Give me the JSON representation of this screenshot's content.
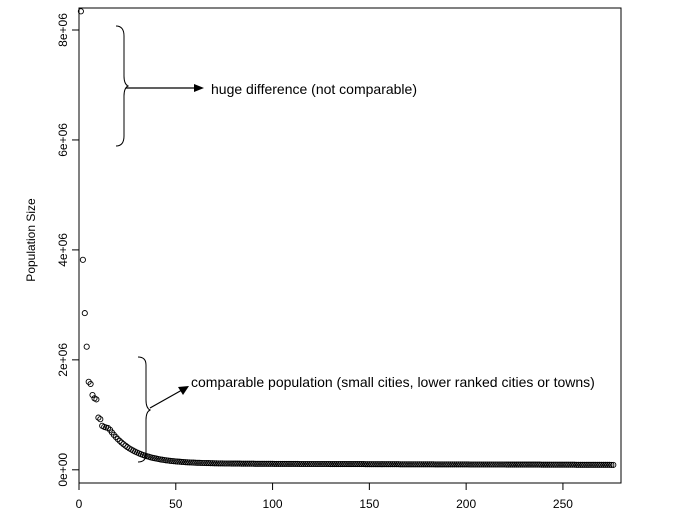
{
  "chart_data": {
    "type": "scatter",
    "title": "",
    "xlabel": "",
    "ylabel": "Population Size",
    "xlim": [
      0,
      280
    ],
    "ylim": [
      -240000,
      8400000
    ],
    "grid": false,
    "legend": "none",
    "marker": "open-circle",
    "x_ticks": [
      {
        "value": 0,
        "label": "0"
      },
      {
        "value": 50,
        "label": "50"
      },
      {
        "value": 100,
        "label": "100"
      },
      {
        "value": 150,
        "label": "150"
      },
      {
        "value": 200,
        "label": "200"
      },
      {
        "value": 250,
        "label": "250"
      }
    ],
    "y_ticks": [
      {
        "value": 0,
        "label": "0e+00"
      },
      {
        "value": 2000000,
        "label": "2e+06"
      },
      {
        "value": 4000000,
        "label": "4e+06"
      },
      {
        "value": 6000000,
        "label": "6e+06"
      },
      {
        "value": 8000000,
        "label": "8e+06"
      }
    ],
    "series": [
      {
        "points": [
          [
            1,
            8340000
          ],
          [
            2,
            3820000
          ],
          [
            3,
            2850000
          ],
          [
            4,
            2240000
          ],
          [
            5,
            1600000
          ],
          [
            6,
            1560000
          ],
          [
            7,
            1360000
          ],
          [
            8,
            1300000
          ],
          [
            9,
            1280000
          ],
          [
            10,
            950000
          ],
          [
            11,
            920000
          ],
          [
            12,
            800000
          ],
          [
            13,
            780000
          ],
          [
            14,
            770000
          ],
          [
            15,
            760000
          ]
        ],
        "decay": {
          "x_start": 16,
          "x_end": 276,
          "y_floor": 90000,
          "amplitude": 612000,
          "rate": 0.08,
          "tail": 26000
        }
      }
    ],
    "annotations": [
      {
        "id": "top",
        "text": "huge difference (not comparable)",
        "x_range_start": 5,
        "y_range": [
          6000000,
          8300000
        ]
      },
      {
        "id": "bottom",
        "text": "comparable population (small cities, lower ranked cities or towns)",
        "x_range_start": 16,
        "y_range": [
          0,
          2050000
        ]
      }
    ]
  }
}
